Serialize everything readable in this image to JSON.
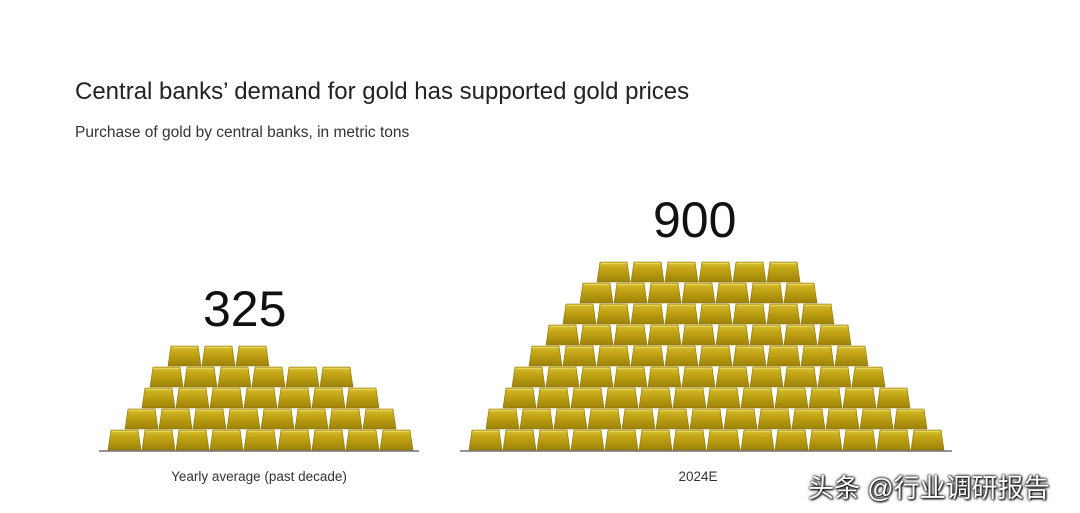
{
  "title": "Central banks’ demand for gold has supported gold prices",
  "subtitle": "Purchase of gold by central banks, in metric tons",
  "watermark": "头条 @行业调研报告",
  "colors": {
    "gold": "#b89a0c",
    "gold_light": "#d8c030",
    "gold_dark": "#8e7607",
    "baseline": "#555555"
  },
  "chart_data": {
    "type": "pictogram-bar",
    "title": "Central banks’ demand for gold has supported gold prices",
    "subtitle": "Purchase of gold by central banks, in metric tons",
    "unit": "metric tons",
    "categories": [
      "Yearly average (past decade)",
      "2024E"
    ],
    "values": [
      325,
      900
    ],
    "value_labels": [
      "325",
      "900"
    ]
  }
}
